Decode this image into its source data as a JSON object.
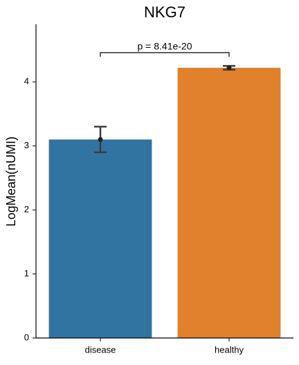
{
  "chart_data": {
    "type": "bar",
    "title": "NKG7",
    "y_label": "LogMean(nUMI)",
    "categories": [
      "disease",
      "healthy"
    ],
    "values": [
      3.1,
      4.22
    ],
    "errors": [
      0.2,
      0.03
    ],
    "colors": [
      "#3274a1",
      "#e1812c"
    ],
    "ylim": [
      0,
      4.9
    ],
    "yticks": [
      0,
      1,
      2,
      3,
      4
    ],
    "grid": false,
    "annotation": "p = 8.41e-20"
  }
}
